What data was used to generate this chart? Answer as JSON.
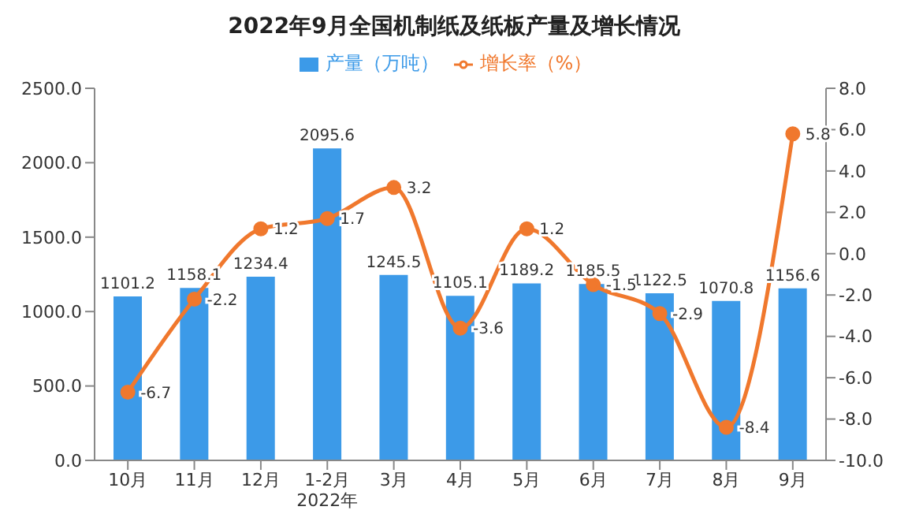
{
  "chart_data": {
    "type": "bar",
    "title": "2022年9月全国机制纸及纸板产量及增长情况",
    "categories": [
      "10月",
      "11月",
      "12月",
      "1-2月",
      "3月",
      "4月",
      "5月",
      "6月",
      "7月",
      "8月",
      "9月"
    ],
    "series": [
      {
        "name": "产量（万吨）",
        "color": "#3c9ae8",
        "values": [
          1101.2,
          1158.1,
          1234.4,
          2095.6,
          1245.5,
          1105.1,
          1189.2,
          1185.5,
          1122.5,
          1070.8,
          1156.6
        ]
      },
      {
        "name": "增长率（%）",
        "type": "line",
        "axis": "y2",
        "color": "#f0782d",
        "values": [
          -6.7,
          -2.2,
          1.2,
          1.7,
          3.2,
          -3.6,
          1.2,
          -1.5,
          -2.9,
          -8.4,
          5.8
        ]
      }
    ],
    "ylim": [
      0,
      2500
    ],
    "yticks": [
      {
        "value": 0,
        "label": "0.0"
      },
      {
        "value": 500,
        "label": "500.0"
      },
      {
        "value": 1000,
        "label": "1000.0"
      },
      {
        "value": 1500,
        "label": "1500.0"
      },
      {
        "value": 2000,
        "label": "2000.0"
      },
      {
        "value": 2500,
        "label": "2500.0"
      }
    ],
    "y2lim": [
      -10,
      8
    ],
    "y2ticks": [
      {
        "value": -10,
        "label": "-10.0"
      },
      {
        "value": -8,
        "label": "-8.0"
      },
      {
        "value": -6,
        "label": "-6.0"
      },
      {
        "value": -4,
        "label": "-4.0"
      },
      {
        "value": -2,
        "label": "-2.0"
      },
      {
        "value": 0,
        "label": "0.0"
      },
      {
        "value": 2,
        "label": "2.0"
      },
      {
        "value": 4,
        "label": "4.0"
      },
      {
        "value": 6,
        "label": "6.0"
      },
      {
        "value": 8,
        "label": "8.0"
      }
    ],
    "annotations": [
      "2022年"
    ],
    "legend": "top",
    "marker": "circle",
    "data_labels": true,
    "grid": false
  }
}
